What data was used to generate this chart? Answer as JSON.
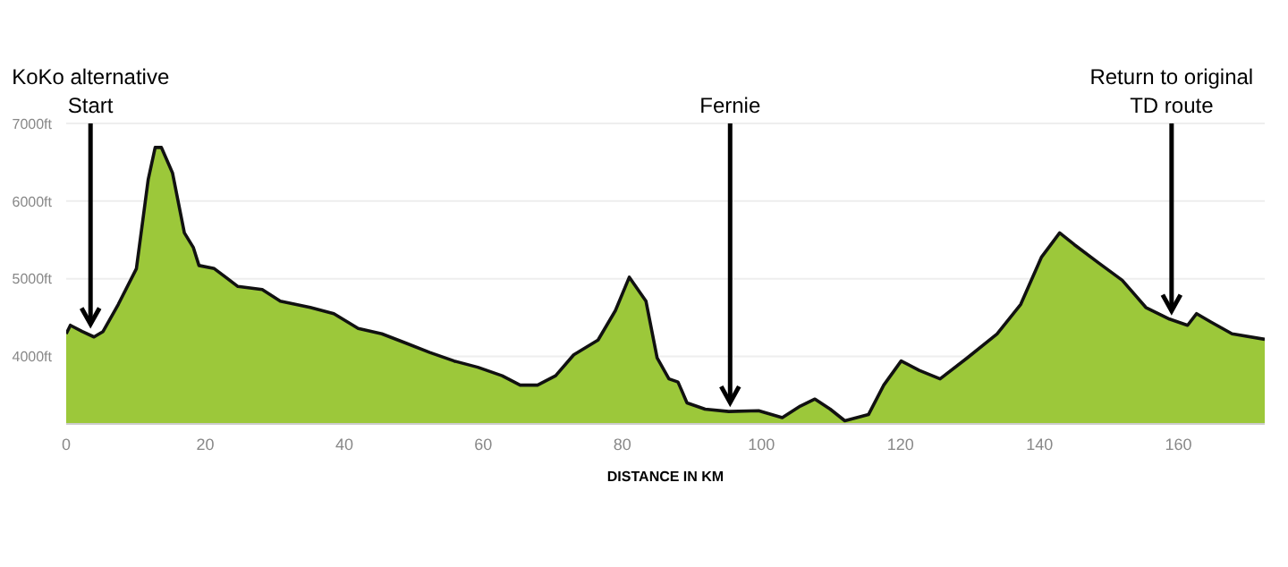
{
  "chart_data": {
    "type": "area",
    "xlabel": "DISTANCE IN KM",
    "x": [
      0,
      0.6,
      2.3,
      4,
      5.3,
      7.5,
      10.1,
      11.8,
      12.8,
      13.7,
      15.3,
      17,
      18.3,
      19.1,
      21.3,
      24.7,
      28.2,
      30.8,
      35.1,
      38.5,
      42,
      45.4,
      48.9,
      52.3,
      55.8,
      59.2,
      62.7,
      65.3,
      67.8,
      70.4,
      73,
      76.5,
      79,
      81,
      83.4,
      85,
      86.7,
      88,
      89.3,
      91.9,
      95.3,
      99.6,
      103,
      105.6,
      107.7,
      109.9,
      112,
      115.4,
      117.6,
      120.1,
      122.7,
      125.7,
      129.6,
      133.9,
      137.3,
      140.3,
      142.9,
      145,
      148.4,
      151.9,
      155.3,
      158.7,
      161.3,
      162.6,
      164.7,
      167.7,
      172.4
    ],
    "series": [
      {
        "color": "#9cc83a",
        "values": [
          4290,
          4400,
          4320,
          4250,
          4320,
          4670,
          5130,
          6280,
          6690,
          6690,
          6360,
          5590,
          5400,
          5170,
          5130,
          4900,
          4860,
          4710,
          4630,
          4550,
          4360,
          4290,
          4170,
          4050,
          3940,
          3860,
          3750,
          3630,
          3630,
          3750,
          4020,
          4210,
          4590,
          5020,
          4710,
          3980,
          3710,
          3670,
          3400,
          3320,
          3290,
          3300,
          3210,
          3360,
          3450,
          3320,
          3170,
          3250,
          3630,
          3940,
          3820,
          3710,
          3980,
          4290,
          4670,
          5280,
          5590,
          5440,
          5210,
          4980,
          4630,
          4480,
          4400,
          4550,
          4440,
          4290,
          4220
        ]
      }
    ],
    "xlim": [
      0,
      172.4
    ],
    "xticks": [
      0,
      20,
      40,
      60,
      80,
      100,
      120,
      140,
      160
    ],
    "ylim": [
      3130,
      7000
    ],
    "yticks": [
      {
        "value": 4000,
        "label": "4000ft"
      },
      {
        "value": 5000,
        "label": "5000ft"
      },
      {
        "value": 6000,
        "label": "6000ft"
      },
      {
        "value": 7000,
        "label": "7000ft"
      }
    ],
    "grid": "y",
    "annotations": [
      {
        "text": "KoKo alternative\nStart",
        "x": 3.5,
        "y": 4300
      },
      {
        "text": "Fernie",
        "x": 95.5,
        "y": 3290
      },
      {
        "text": "Return to original\nTD route",
        "x": 159,
        "y": 4470
      }
    ]
  }
}
